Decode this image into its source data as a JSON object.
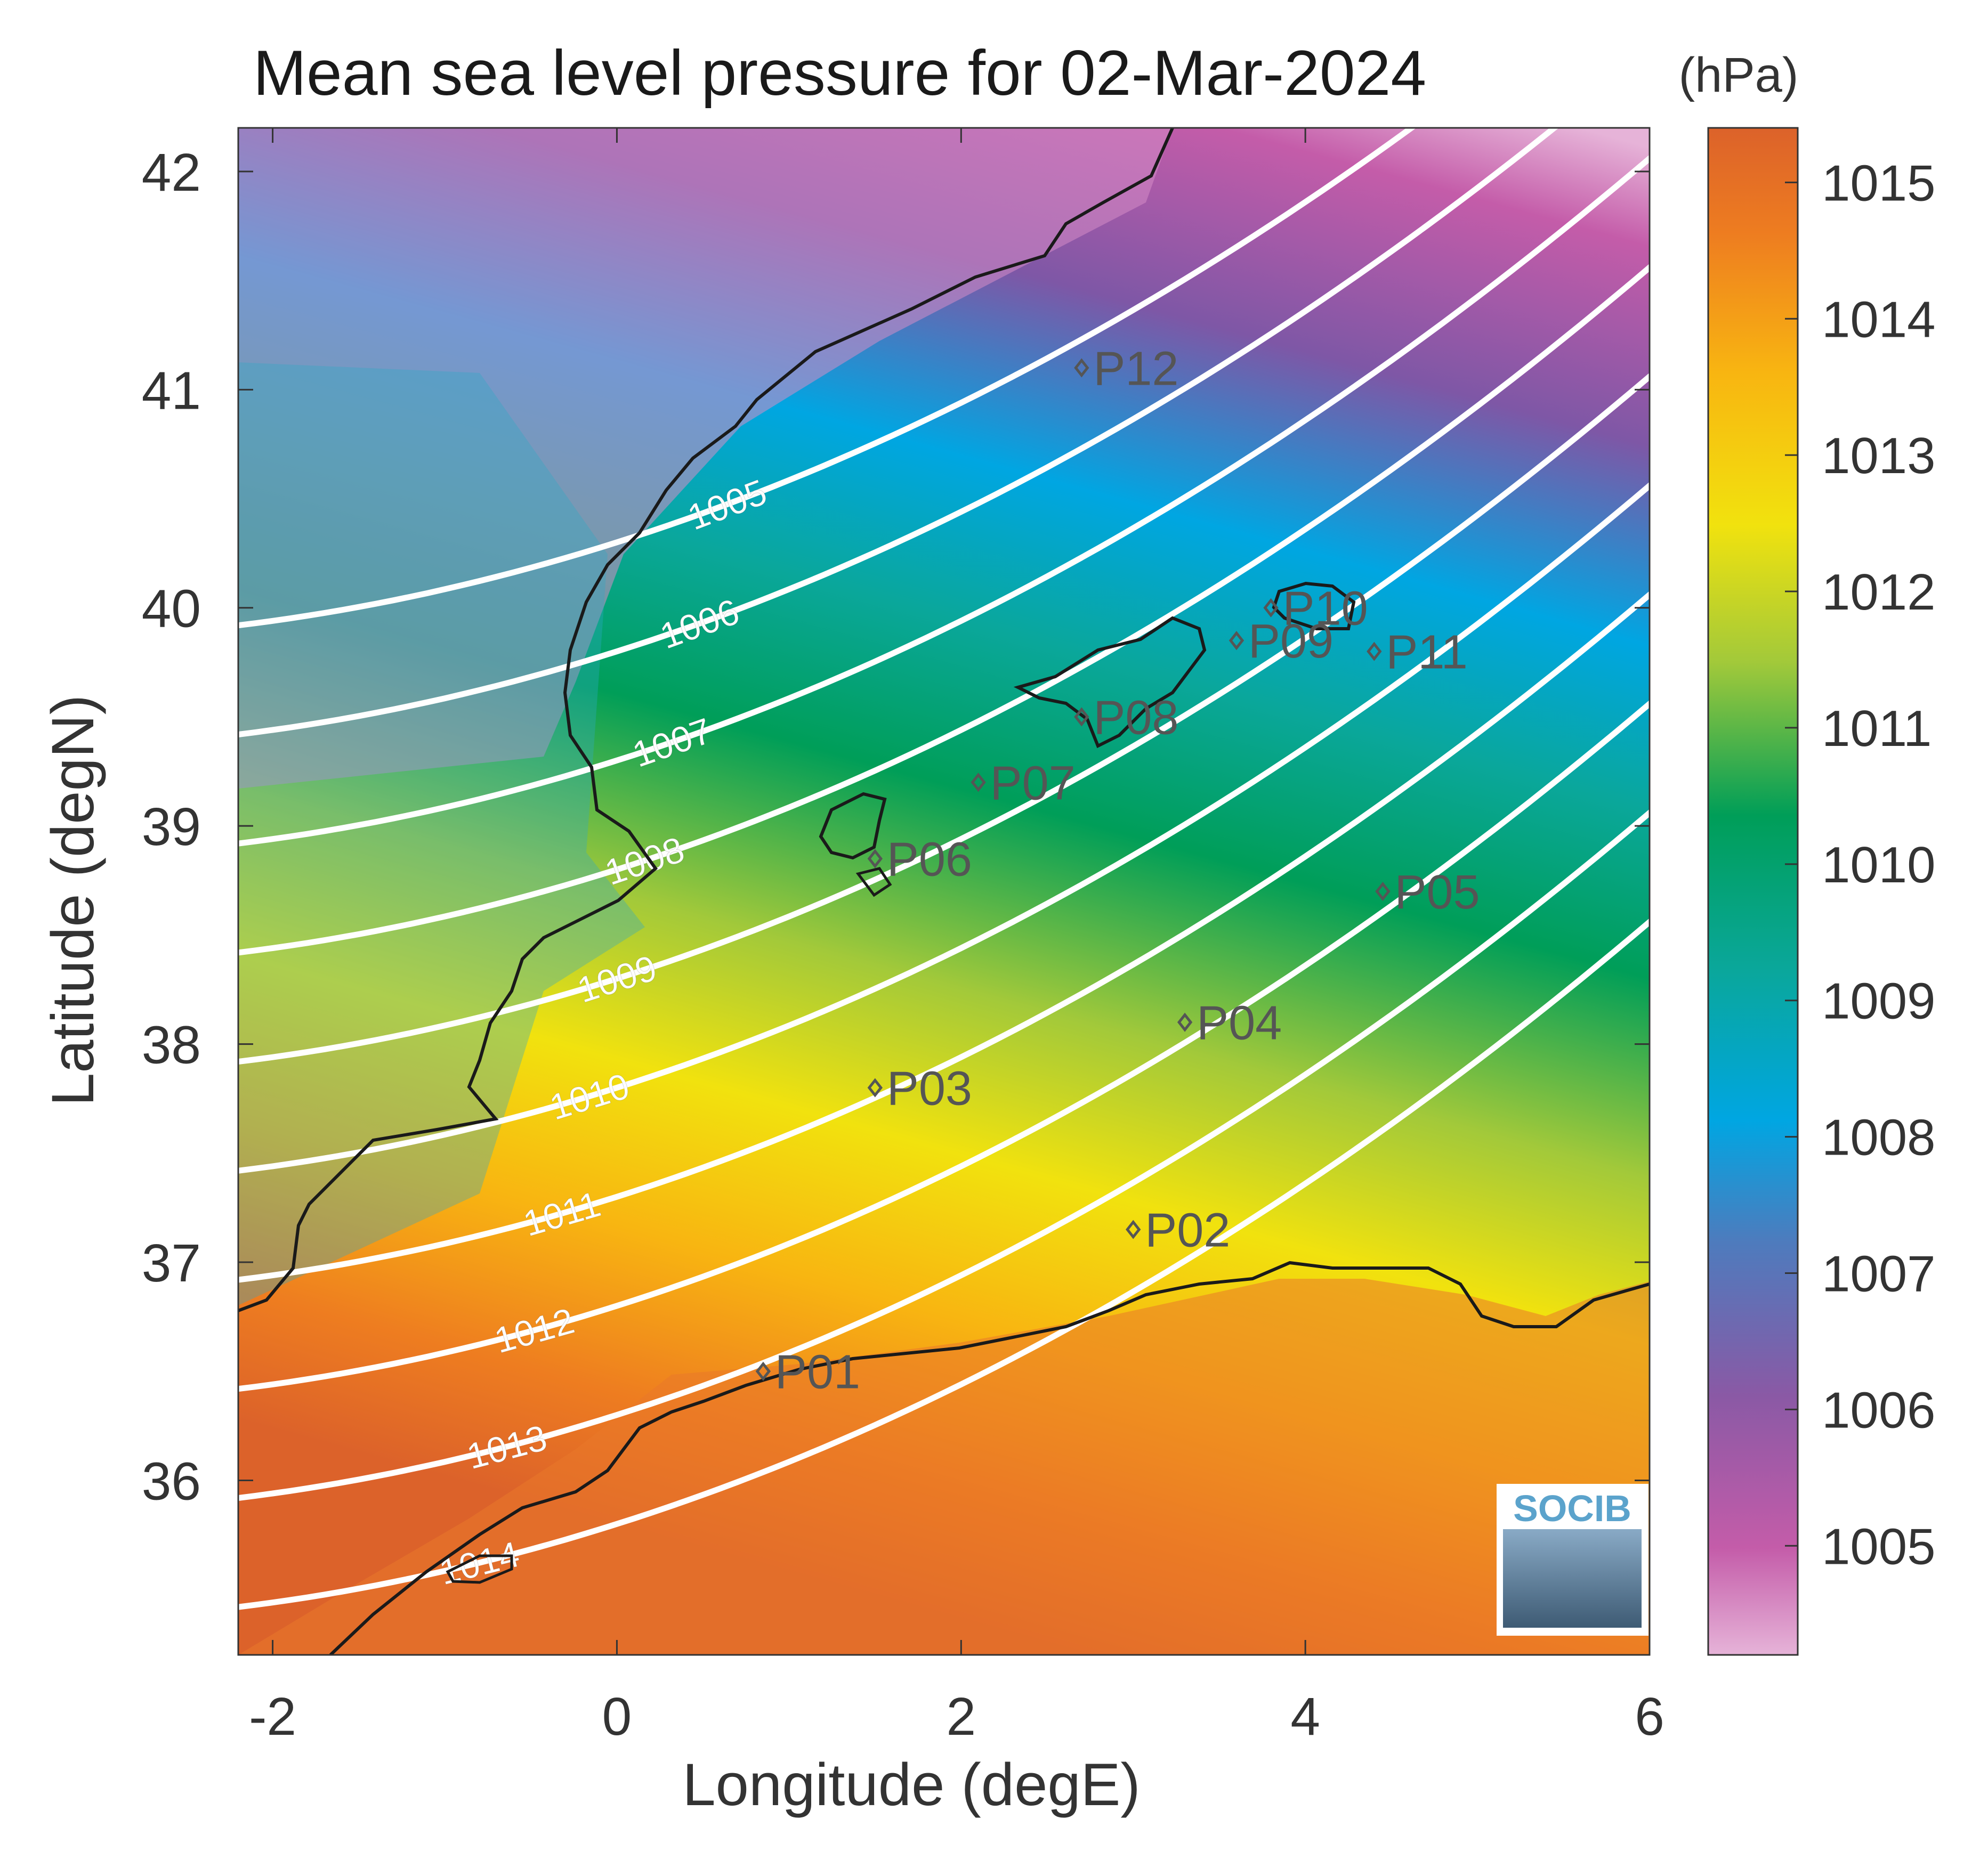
{
  "title": "Mean sea level pressure for 02-Mar-2024",
  "xlabel": "Longitude (degE)",
  "ylabel": "Latitude (degN)",
  "colorbar": {
    "unit": "(hPa)",
    "ticks": [
      1005,
      1006,
      1007,
      1008,
      1009,
      1010,
      1011,
      1012,
      1013,
      1014,
      1015
    ],
    "range": [
      1004.2,
      1015.4
    ]
  },
  "logo_text": "SOCIB",
  "chart_data": {
    "type": "heatmap",
    "variable": "Mean sea level pressure",
    "units": "hPa",
    "xlim": [
      -2.2,
      6.0
    ],
    "ylim": [
      35.2,
      42.2
    ],
    "xticks": [
      -2,
      0,
      2,
      4,
      6
    ],
    "yticks": [
      36,
      37,
      38,
      39,
      40,
      41,
      42
    ],
    "contour_levels": [
      1005,
      1006,
      1007,
      1008,
      1009,
      1010,
      1011,
      1012,
      1013,
      1014
    ],
    "points": [
      {
        "name": "P01",
        "lon": 0.85,
        "lat": 36.5
      },
      {
        "name": "P02",
        "lon": 3.0,
        "lat": 37.15
      },
      {
        "name": "P03",
        "lon": 1.5,
        "lat": 37.8
      },
      {
        "name": "P04",
        "lon": 3.3,
        "lat": 38.1
      },
      {
        "name": "P05",
        "lon": 4.45,
        "lat": 38.7
      },
      {
        "name": "P06",
        "lon": 1.5,
        "lat": 38.85
      },
      {
        "name": "P07",
        "lon": 2.1,
        "lat": 39.2
      },
      {
        "name": "P08",
        "lon": 2.7,
        "lat": 39.5
      },
      {
        "name": "P09",
        "lon": 3.6,
        "lat": 39.85
      },
      {
        "name": "P10",
        "lon": 3.8,
        "lat": 40.0
      },
      {
        "name": "P11",
        "lon": 4.4,
        "lat": 39.8
      },
      {
        "name": "P12",
        "lon": 2.7,
        "lat": 41.1
      }
    ]
  }
}
